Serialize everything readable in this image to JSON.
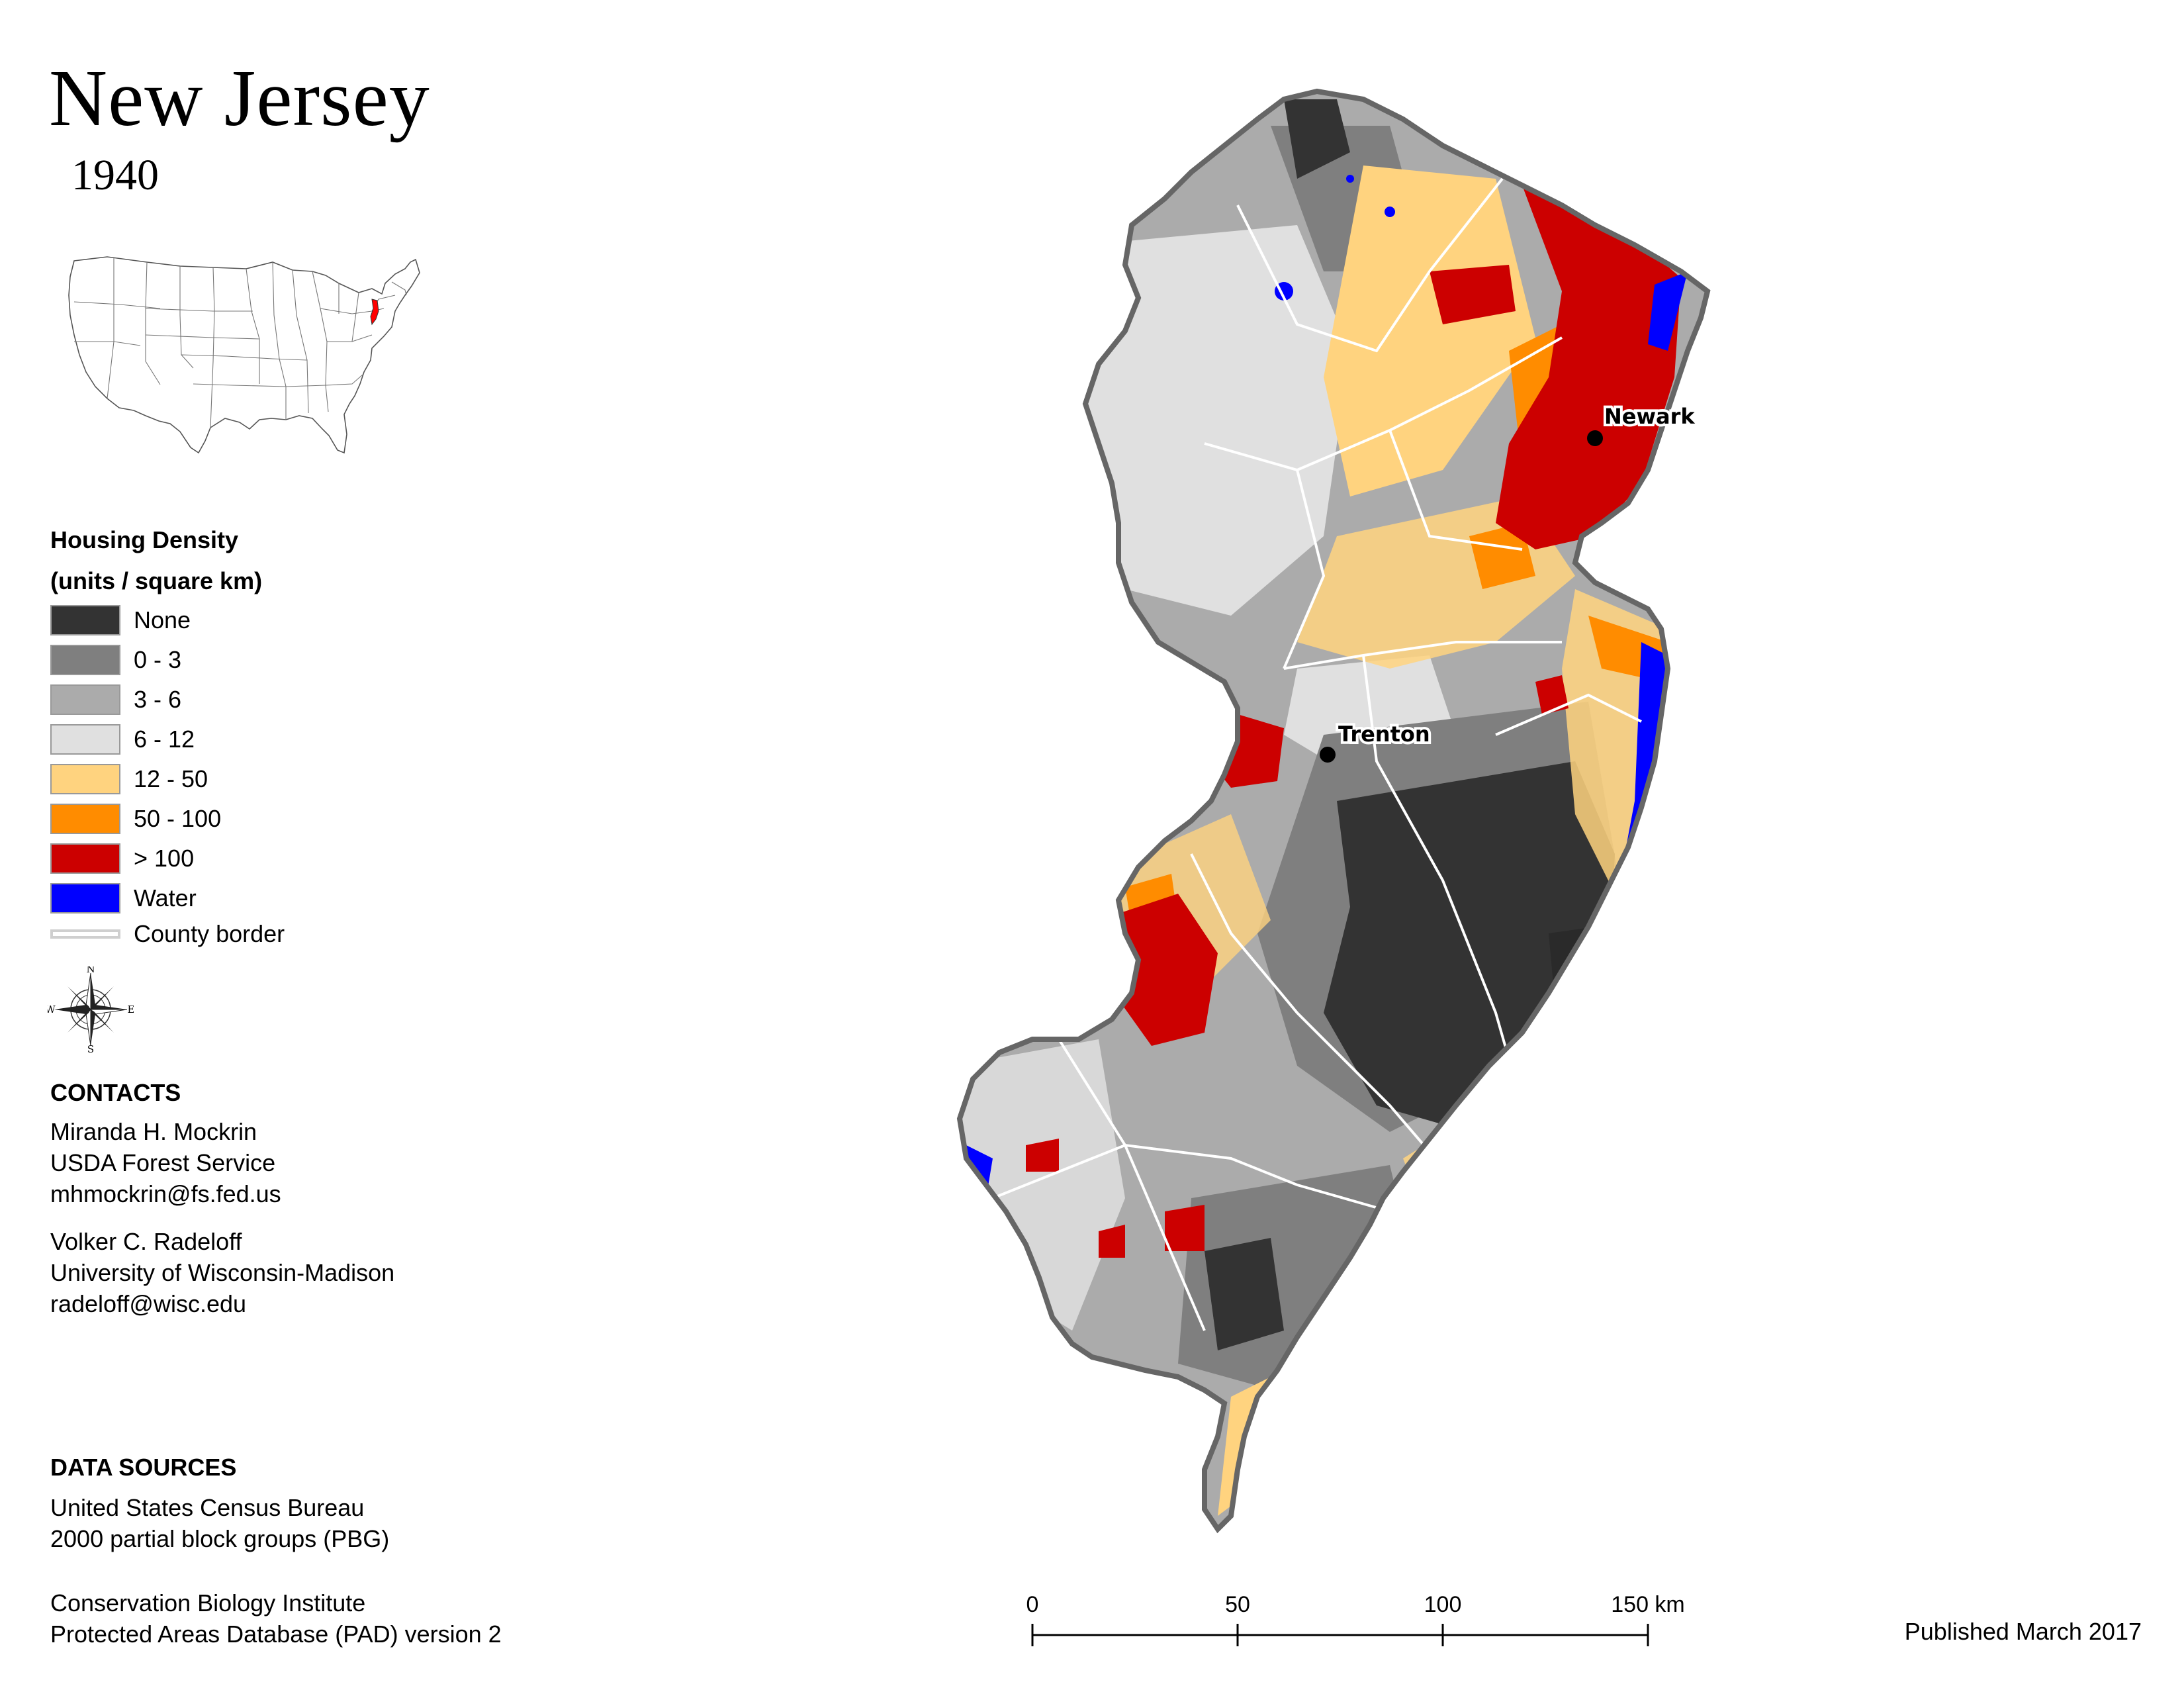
{
  "title": "New Jersey",
  "year": "1940",
  "legend": {
    "title_line1": "Housing Density",
    "title_line2": "(units / square km)",
    "items": [
      {
        "label": "None",
        "color": "#333333"
      },
      {
        "label": "0 - 3",
        "color": "#7f7f7f"
      },
      {
        "label": "3 - 6",
        "color": "#ababab"
      },
      {
        "label": "6 - 12",
        "color": "#e0e0e0"
      },
      {
        "label": "12 - 50",
        "color": "#ffd37f"
      },
      {
        "label": "50 - 100",
        "color": "#ff8c00"
      },
      {
        "label": "> 100",
        "color": "#cc0000"
      },
      {
        "label": "Water",
        "color": "#0000ff"
      }
    ],
    "county_border_label": "County border"
  },
  "compass": {
    "n": "N",
    "s": "S",
    "e": "E",
    "w": "W"
  },
  "contacts": {
    "heading": "CONTACTS",
    "people": [
      {
        "name": "Miranda H. Mockrin",
        "org": "USDA Forest Service",
        "email": "mhmockrin@fs.fed.us"
      },
      {
        "name": "Volker C. Radeloff",
        "org": "University of Wisconsin-Madison",
        "email": "radeloff@wisc.edu"
      }
    ]
  },
  "data_sources": {
    "heading": "DATA SOURCES",
    "sources": [
      {
        "line1": "United States Census Bureau",
        "line2": "2000 partial block groups (PBG)"
      },
      {
        "line1": "Conservation Biology Institute",
        "line2": "Protected Areas Database (PAD) version 2"
      }
    ]
  },
  "cities": [
    {
      "name": "Newark"
    },
    {
      "name": "Trenton"
    }
  ],
  "scale_bar": {
    "ticks": [
      "0",
      "50",
      "100",
      "150 km"
    ]
  },
  "published": "Published March 2017"
}
